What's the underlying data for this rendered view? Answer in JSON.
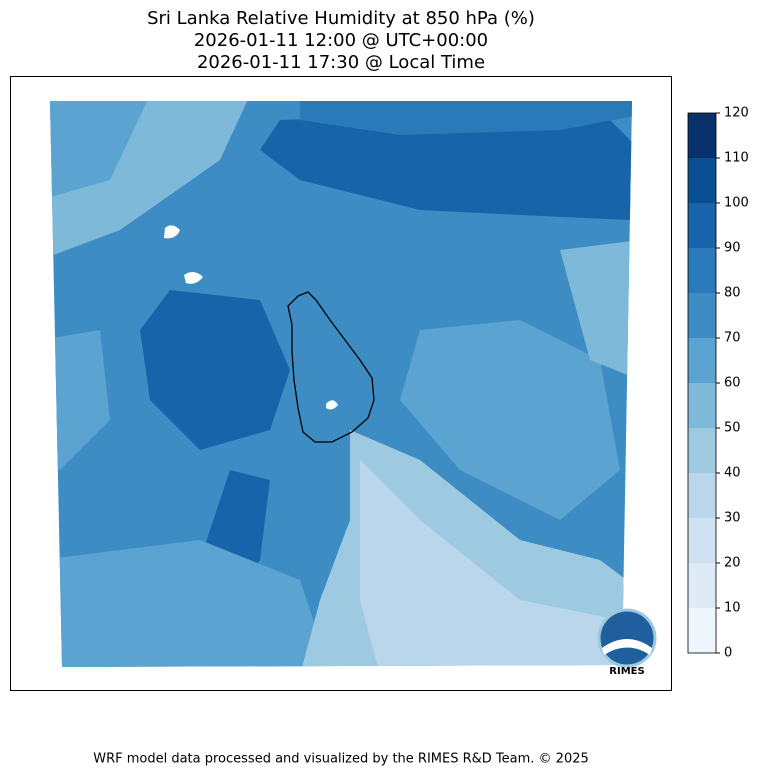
{
  "title": [
    "Sri Lanka Relative Humidity at 850 hPa (%)",
    "2026-01-11 12:00 @ UTC+00:00",
    "2026-01-11 17:30 @ Local Time"
  ],
  "colorbar": {
    "ticks": [
      0,
      10,
      20,
      30,
      40,
      50,
      60,
      70,
      80,
      90,
      100,
      110,
      120
    ],
    "colors": [
      "#f0f6fd",
      "#deebf7",
      "#cfe1f2",
      "#b9d6ea",
      "#9ecae1",
      "#7fb9da",
      "#5ba3d0",
      "#3d8dc4",
      "#2a7ab9",
      "#1764ab",
      "#0b4f93",
      "#08306b"
    ]
  },
  "logo": "RIMES",
  "footer": "WRF model data processed and visualized by the RIMES R&D Team. © 2025"
}
